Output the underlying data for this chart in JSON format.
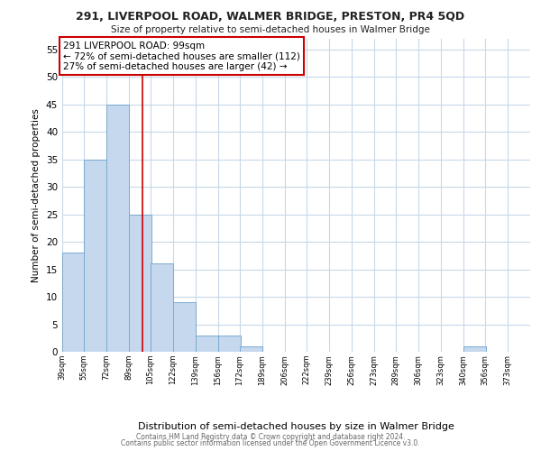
{
  "title": "291, LIVERPOOL ROAD, WALMER BRIDGE, PRESTON, PR4 5QD",
  "subtitle": "Size of property relative to semi-detached houses in Walmer Bridge",
  "xlabel": "Distribution of semi-detached houses by size in Walmer Bridge",
  "ylabel": "Number of semi-detached properties",
  "bar_edges": [
    39,
    55,
    72,
    89,
    105,
    122,
    139,
    156,
    172,
    189,
    206,
    222,
    239,
    256,
    273,
    289,
    306,
    323,
    340,
    356,
    373
  ],
  "bar_heights": [
    18,
    35,
    45,
    25,
    16,
    9,
    3,
    3,
    1,
    0,
    0,
    0,
    0,
    0,
    0,
    0,
    0,
    0,
    1,
    0,
    0
  ],
  "bar_color": "#c5d8ee",
  "bar_edge_color": "#7aaad0",
  "property_line_x": 99,
  "property_line_color": "#cc0000",
  "ylim": [
    0,
    57
  ],
  "yticks": [
    0,
    5,
    10,
    15,
    20,
    25,
    30,
    35,
    40,
    45,
    50,
    55
  ],
  "annotation_title": "291 LIVERPOOL ROAD: 99sqm",
  "annotation_line1": "← 72% of semi-detached houses are smaller (112)",
  "annotation_line2": "27% of semi-detached houses are larger (42) →",
  "annotation_box_color": "#ffffff",
  "annotation_box_edge_color": "#cc0000",
  "footer_line1": "Contains HM Land Registry data © Crown copyright and database right 2024.",
  "footer_line2": "Contains public sector information licensed under the Open Government Licence v3.0.",
  "background_color": "#ffffff",
  "grid_color": "#c8d8e8",
  "tick_labels": [
    "39sqm",
    "55sqm",
    "72sqm",
    "89sqm",
    "105sqm",
    "122sqm",
    "139sqm",
    "156sqm",
    "172sqm",
    "189sqm",
    "206sqm",
    "222sqm",
    "239sqm",
    "256sqm",
    "273sqm",
    "289sqm",
    "306sqm",
    "323sqm",
    "340sqm",
    "356sqm",
    "373sqm"
  ],
  "bin_width": 17
}
